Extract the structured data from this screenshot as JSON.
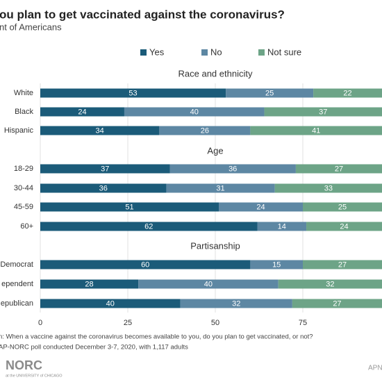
{
  "title": "ou plan to get vaccinated against the coronavirus?",
  "subtitle": "nt of Americans",
  "note": "n: When a vaccine against the coronavirus becomes available to you, do you plan to get vaccinated, or not?",
  "source": "AP-NORC poll conducted December 3-7, 2020,  with 1,117 adults",
  "logo": "NORC",
  "logo_sub": "at the UNIVERSITY of CHICAGO",
  "footer_right": "APN",
  "chart_data": [
    {
      "type": "stacked-bar-h",
      "title": "Race and ethnicity",
      "categories": [
        "White",
        "Black",
        "Hispanic"
      ],
      "series": [
        {
          "name": "Yes",
          "color": "#1b5b79",
          "values": [
            53,
            24,
            34
          ]
        },
        {
          "name": "No",
          "color": "#5d87a3",
          "values": [
            25,
            40,
            26
          ]
        },
        {
          "name": "Not sure",
          "color": "#6da487",
          "values": [
            22,
            37,
            41
          ]
        }
      ],
      "xlim": [
        0,
        100
      ]
    },
    {
      "type": "stacked-bar-h",
      "title": "Age",
      "categories": [
        "18-29",
        "30-44",
        "45-59",
        "60+"
      ],
      "series": [
        {
          "name": "Yes",
          "color": "#1b5b79",
          "values": [
            37,
            36,
            51,
            62
          ]
        },
        {
          "name": "No",
          "color": "#5d87a3",
          "values": [
            36,
            31,
            24,
            14
          ]
        },
        {
          "name": "Not sure",
          "color": "#6da487",
          "values": [
            27,
            33,
            25,
            24
          ]
        }
      ],
      "xlim": [
        0,
        100
      ]
    },
    {
      "type": "stacked-bar-h",
      "title": "Partisanship",
      "categories": [
        "Democrat",
        "ependent",
        "epublican"
      ],
      "series": [
        {
          "name": "Yes",
          "color": "#1b5b79",
          "values": [
            60,
            28,
            40
          ]
        },
        {
          "name": "No",
          "color": "#5d87a3",
          "values": [
            15,
            40,
            32
          ]
        },
        {
          "name": "Not sure",
          "color": "#6da487",
          "values": [
            27,
            32,
            27
          ]
        }
      ],
      "xlim": [
        0,
        100
      ],
      "xticks": [
        0,
        25,
        50,
        75
      ]
    }
  ]
}
